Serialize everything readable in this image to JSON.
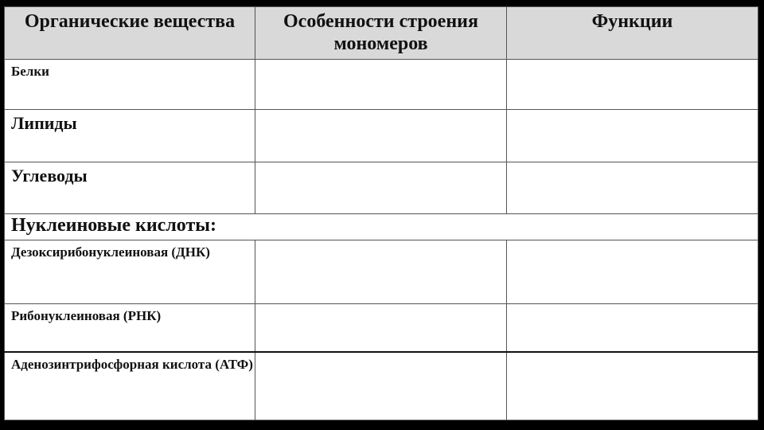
{
  "headers": [
    "Органические вещества",
    "Особенности строения мономеров",
    "Функции"
  ],
  "rows": {
    "proteins": "Белки",
    "lipids": "Липиды",
    "carbs": "Углеводы",
    "nucleic": "Нуклеиновые кислоты:",
    "dna": "Дезоксирибонуклеиновая (ДНК)",
    "rna": "Рибонуклеиновая (РНК)",
    "atp": "Аденозинтрифосфорная кислота (АТФ)"
  }
}
